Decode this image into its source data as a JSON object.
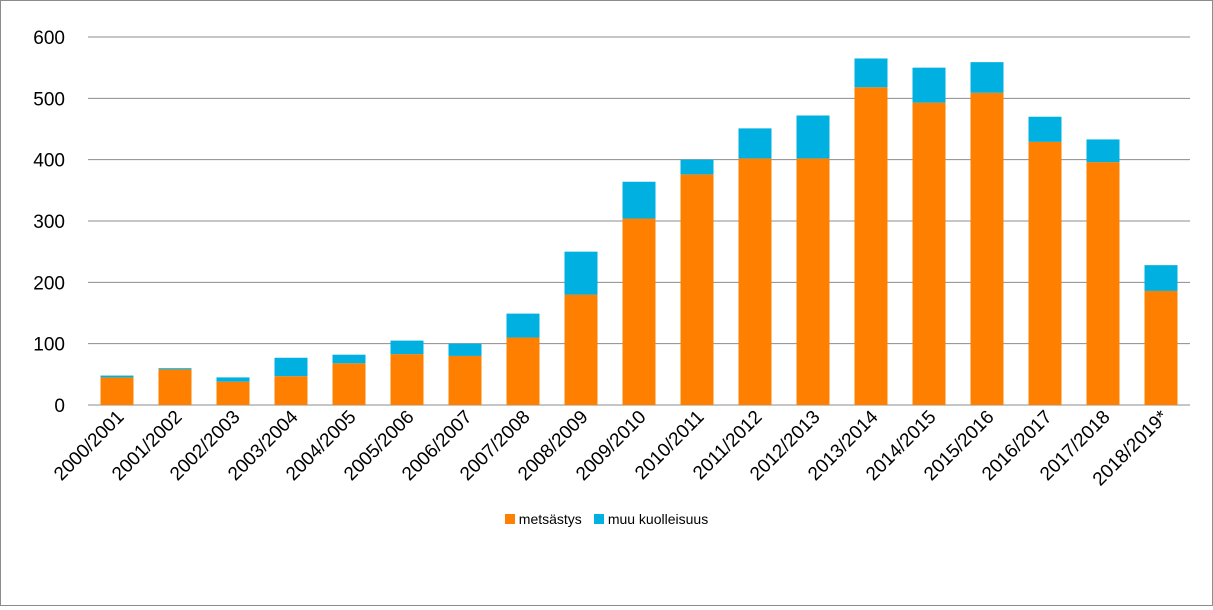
{
  "chart_data": {
    "type": "bar",
    "stacked": true,
    "categories": [
      "2000/2001",
      "2001/2002",
      "2002/2003",
      "2003/2004",
      "2004/2005",
      "2005/2006",
      "2006/2007",
      "2007/2008",
      "2008/2009",
      "2009/2010",
      "2010/2011",
      "2011/2012",
      "2012/2013",
      "2013/2014",
      "2014/2015",
      "2015/2016",
      "2016/2017",
      "2017/2018",
      "2018/2019*"
    ],
    "series": [
      {
        "name": "metsästys",
        "color": "#ff8000",
        "values": [
          45,
          58,
          38,
          47,
          68,
          83,
          80,
          110,
          180,
          304,
          376,
          402,
          402,
          518,
          493,
          509,
          429,
          396,
          186
        ]
      },
      {
        "name": "muu kuolleisuus",
        "color": "#00b0e0",
        "values": [
          3,
          2,
          7,
          30,
          14,
          22,
          20,
          39,
          70,
          60,
          24,
          49,
          70,
          47,
          57,
          50,
          41,
          37,
          42
        ]
      }
    ],
    "ylim": [
      0,
      600
    ],
    "yticks": [
      0,
      100,
      200,
      300,
      400,
      500,
      600
    ],
    "grid": true,
    "legend_position": "bottom",
    "title": "",
    "xlabel": "",
    "ylabel": ""
  }
}
